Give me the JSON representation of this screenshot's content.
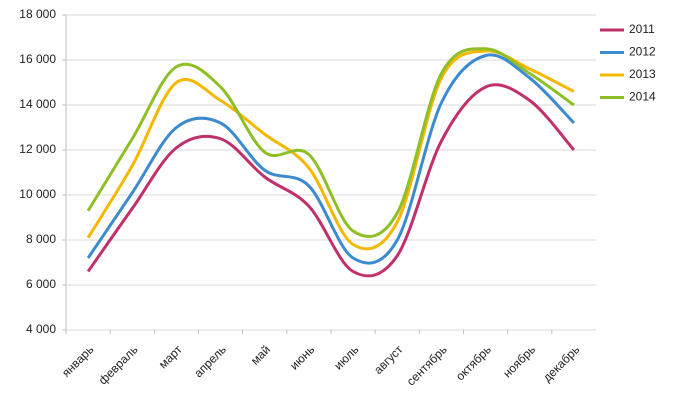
{
  "chart_data": {
    "type": "line",
    "categories": [
      "январь",
      "февраль",
      "март",
      "апрель",
      "май",
      "июнь",
      "июль",
      "август",
      "сентябрь",
      "октябрь",
      "ноябрь",
      "декабрь"
    ],
    "series": [
      {
        "name": "2011",
        "color": "#c0306a",
        "values": [
          6600,
          9400,
          12100,
          12500,
          10800,
          9500,
          6600,
          7300,
          12400,
          14800,
          14200,
          12000
        ]
      },
      {
        "name": "2012",
        "color": "#3c8bd0",
        "values": [
          7200,
          10100,
          13000,
          13200,
          11100,
          10400,
          7200,
          8000,
          14100,
          16200,
          15200,
          13200
        ]
      },
      {
        "name": "2013",
        "color": "#f5b800",
        "values": [
          8100,
          11300,
          15000,
          14200,
          12700,
          11200,
          7800,
          8800,
          15200,
          16400,
          15600,
          14600
        ]
      },
      {
        "name": "2014",
        "color": "#8fbf26",
        "values": [
          9300,
          12500,
          15700,
          14800,
          11900,
          11800,
          8400,
          9200,
          15400,
          16500,
          15400,
          14000
        ]
      }
    ],
    "ylim": [
      4000,
      18000
    ],
    "yticks": [
      {
        "value": 4000,
        "label": "4 000"
      },
      {
        "value": 6000,
        "label": "6 000"
      },
      {
        "value": 8000,
        "label": "8 000"
      },
      {
        "value": 10000,
        "label": "10 000"
      },
      {
        "value": 12000,
        "label": "12 000"
      },
      {
        "value": 14000,
        "label": "14 000"
      },
      {
        "value": 16000,
        "label": "16 000"
      },
      {
        "value": 18000,
        "label": "18 000"
      }
    ],
    "grid": true,
    "smooth": true,
    "legend": "right"
  }
}
